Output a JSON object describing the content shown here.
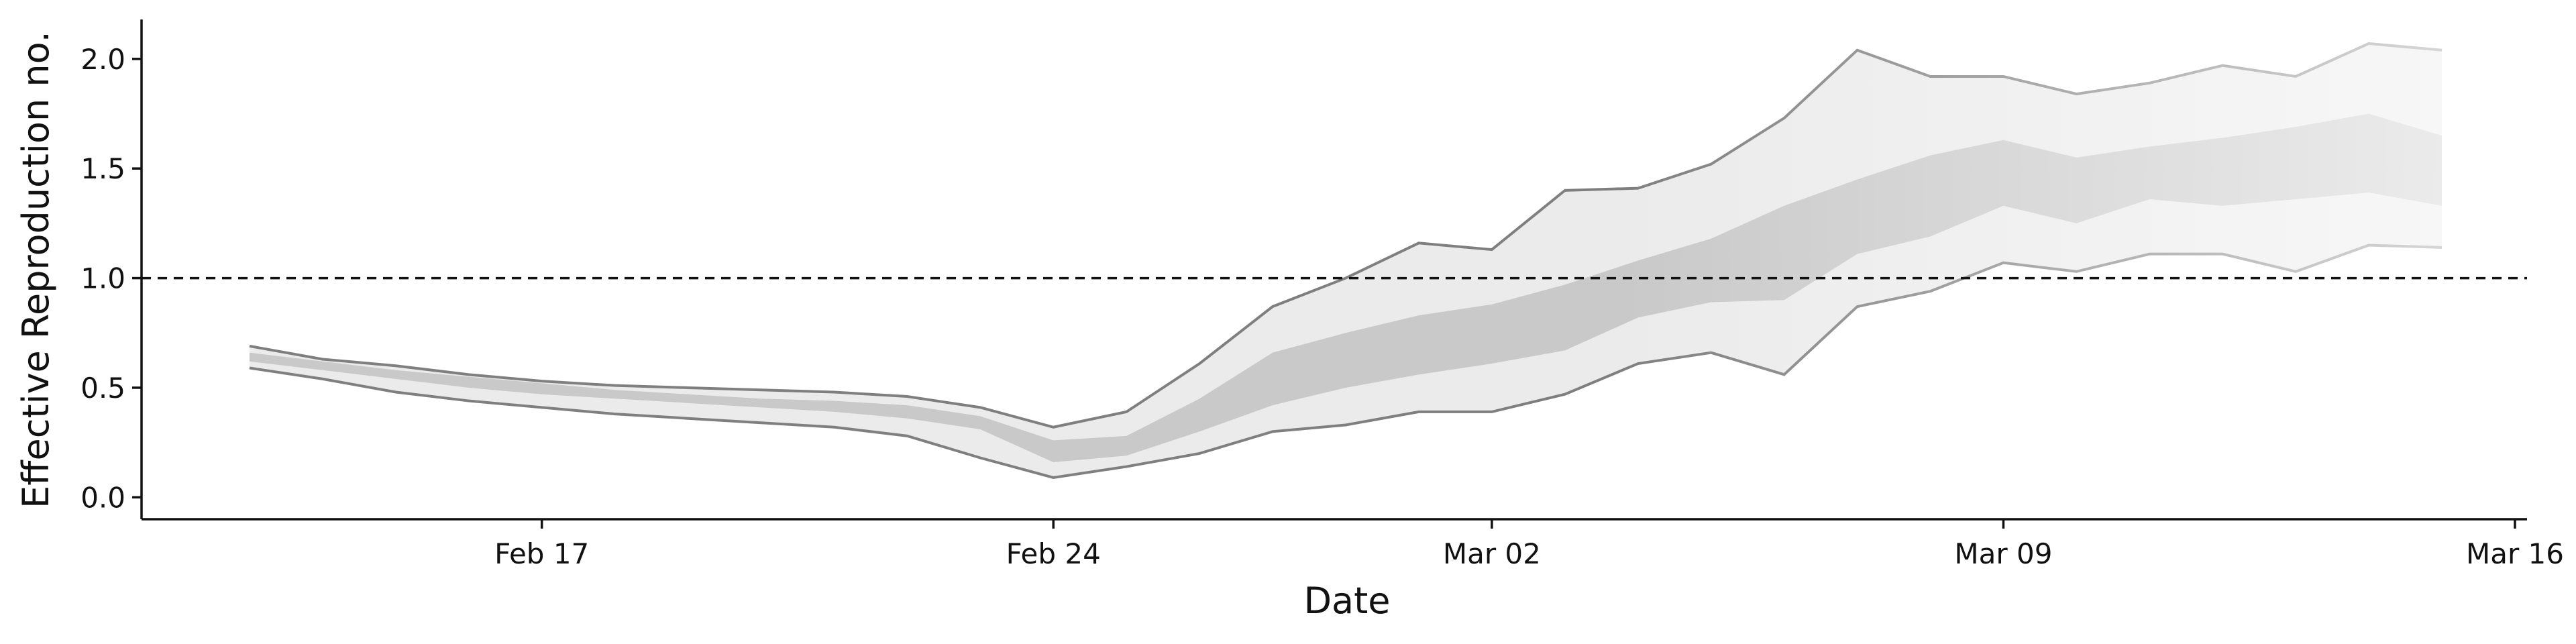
{
  "chart_data": {
    "type": "band",
    "xlabel": "Date",
    "ylabel": "Effective Reproduction no.",
    "x": [
      "Feb 13",
      "Feb 14",
      "Feb 15",
      "Feb 16",
      "Feb 17",
      "Feb 18",
      "Feb 19",
      "Feb 20",
      "Feb 21",
      "Feb 22",
      "Feb 23",
      "Feb 24",
      "Feb 25",
      "Feb 26",
      "Feb 27",
      "Feb 28",
      "Mar 01",
      "Mar 02",
      "Mar 03",
      "Mar 04",
      "Mar 05",
      "Mar 06",
      "Mar 07",
      "Mar 08",
      "Mar 09",
      "Mar 10",
      "Mar 11",
      "Mar 12",
      "Mar 13",
      "Mar 14",
      "Mar 15"
    ],
    "outer_band": {
      "upper": [
        0.69,
        0.63,
        0.6,
        0.56,
        0.53,
        0.51,
        0.5,
        0.49,
        0.48,
        0.46,
        0.41,
        0.32,
        0.39,
        0.61,
        0.87,
        1.0,
        1.16,
        1.13,
        1.4,
        1.41,
        1.52,
        1.73,
        2.04,
        1.92,
        1.92,
        1.84,
        1.89,
        1.97,
        1.92,
        2.07,
        2.04
      ],
      "lower": [
        0.59,
        0.54,
        0.48,
        0.44,
        0.41,
        0.38,
        0.36,
        0.34,
        0.32,
        0.28,
        0.18,
        0.09,
        0.14,
        0.2,
        0.3,
        0.33,
        0.39,
        0.39,
        0.47,
        0.61,
        0.66,
        0.56,
        0.87,
        0.94,
        1.07,
        1.03,
        1.11,
        1.11,
        1.03,
        1.15,
        1.14
      ],
      "color": "#ebebeb",
      "line_color": "#7f7f7f"
    },
    "inner_band": {
      "upper": [
        0.66,
        0.62,
        0.58,
        0.55,
        0.52,
        0.49,
        0.47,
        0.45,
        0.44,
        0.42,
        0.37,
        0.26,
        0.28,
        0.45,
        0.66,
        0.75,
        0.83,
        0.88,
        0.97,
        1.08,
        1.18,
        1.33,
        1.45,
        1.56,
        1.63,
        1.55,
        1.6,
        1.64,
        1.69,
        1.75,
        1.65
      ],
      "lower": [
        0.62,
        0.58,
        0.54,
        0.5,
        0.47,
        0.45,
        0.43,
        0.41,
        0.39,
        0.36,
        0.31,
        0.16,
        0.19,
        0.3,
        0.42,
        0.5,
        0.56,
        0.61,
        0.67,
        0.82,
        0.89,
        0.9,
        1.11,
        1.19,
        1.33,
        1.25,
        1.36,
        1.33,
        1.36,
        1.39,
        1.33
      ],
      "color": "#c9c9c9"
    },
    "reference_line": 1.0,
    "xlim": [
      "Feb 12",
      "Mar 16"
    ],
    "xticks": [
      "Feb 17",
      "Feb 24",
      "Mar 02",
      "Mar 09",
      "Mar 16"
    ],
    "ylim": [
      -0.1,
      2.18
    ],
    "yticks": [
      {
        "value": 0,
        "label": "0.0"
      },
      {
        "value": 0.5,
        "label": "0.5"
      },
      {
        "value": 1,
        "label": "1.0"
      },
      {
        "value": 1.5,
        "label": "1.5"
      },
      {
        "value": 2,
        "label": "2.0"
      }
    ]
  }
}
